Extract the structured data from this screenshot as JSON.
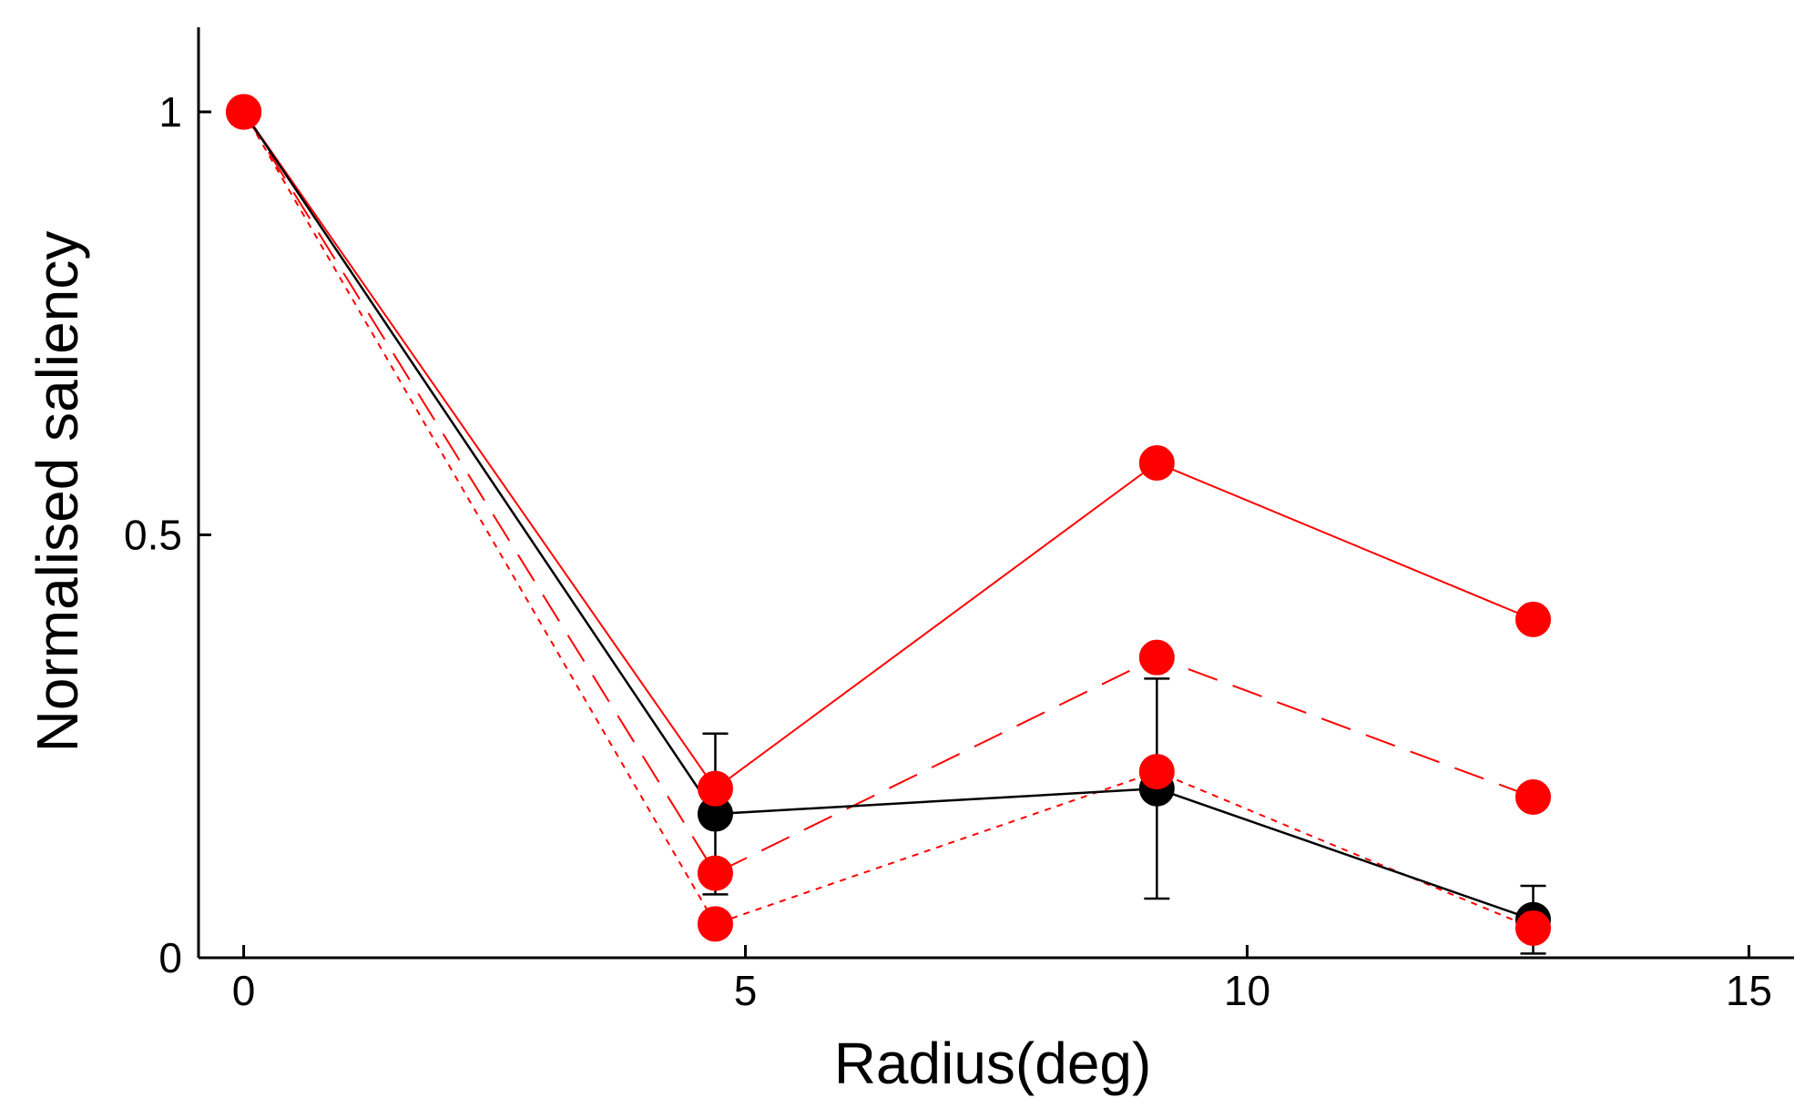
{
  "chart_data": {
    "type": "line",
    "title": "",
    "xlabel": "Radius(deg)",
    "ylabel": "Normalised saliency",
    "xlim": [
      -0.45,
      15.45
    ],
    "ylim": [
      0,
      1.1
    ],
    "x_ticks": [
      0,
      5,
      10,
      15
    ],
    "x_tick_labels": [
      "0",
      "5",
      "10",
      "15"
    ],
    "y_ticks": [
      0,
      0.5,
      1
    ],
    "y_tick_labels": [
      "0",
      "0.5",
      "1"
    ],
    "grid": false,
    "legend": "none",
    "series": [
      {
        "color": "#ff0000",
        "line_style": "solid",
        "marker": "circle",
        "x": [
          0,
          4.7,
          9.1,
          12.85
        ],
        "y": [
          1.0,
          0.2,
          0.585,
          0.4
        ]
      },
      {
        "color": "#ff0000",
        "line_style": "dashed",
        "marker": "circle",
        "x": [
          0,
          4.7,
          9.1,
          12.85
        ],
        "y": [
          1.0,
          0.1,
          0.355,
          0.19
        ]
      },
      {
        "color": "#ff0000",
        "line_style": "dotted",
        "marker": "circle",
        "x": [
          0,
          4.7,
          9.1,
          12.85
        ],
        "y": [
          1.0,
          0.04,
          0.22,
          0.035
        ]
      },
      {
        "color": "#000000",
        "line_style": "solid",
        "marker": "circle",
        "x": [
          0,
          4.7,
          9.1,
          12.85
        ],
        "y": [
          1.0,
          0.17,
          0.2,
          0.045
        ],
        "error": [
          0,
          0.095,
          0.13,
          0.04
        ]
      }
    ]
  }
}
